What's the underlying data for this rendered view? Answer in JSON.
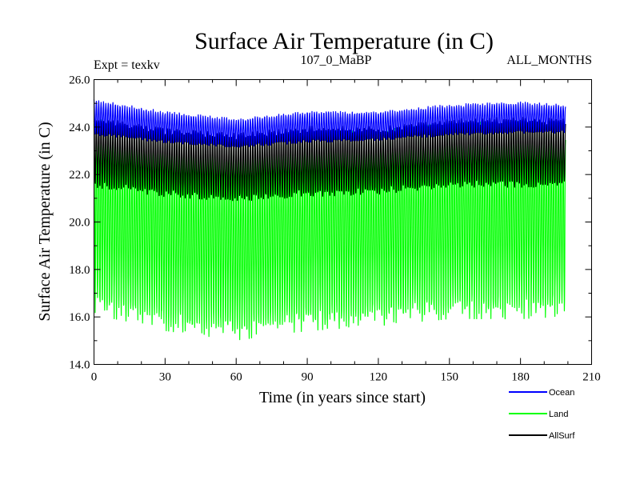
{
  "chart_data": {
    "type": "line",
    "title": "Surface Air Temperature (in C)",
    "subtitle_left": "Expt = texkv",
    "subtitle_center": "107_0_MaBP",
    "subtitle_right": "ALL_MONTHS",
    "xlabel": "Time (in years since start)",
    "ylabel": "Surface Air Temperature (in C)",
    "xlim": [
      0,
      210
    ],
    "ylim": [
      14.0,
      26.0
    ],
    "x_ticks": [
      0,
      30,
      60,
      90,
      120,
      150,
      180,
      210
    ],
    "x_tick_labels": [
      "0",
      "30",
      "60",
      "90",
      "120",
      "150",
      "180",
      "210"
    ],
    "y_ticks": [
      14.0,
      16.0,
      18.0,
      20.0,
      22.0,
      24.0,
      26.0
    ],
    "y_tick_labels": [
      "14.0",
      "16.0",
      "18.0",
      "20.0",
      "22.0",
      "24.0",
      "26.0"
    ],
    "x_data_range": [
      0,
      199
    ],
    "samples_per_year": 12,
    "series": [
      {
        "name": "Ocean",
        "color": "#0000ff",
        "seasonal_range": [
          {
            "year": 0,
            "min": 23.7,
            "max": 25.1
          },
          {
            "year": 30,
            "min": 23.4,
            "max": 24.6
          },
          {
            "year": 60,
            "min": 23.2,
            "max": 24.3
          },
          {
            "year": 90,
            "min": 23.4,
            "max": 24.6
          },
          {
            "year": 120,
            "min": 23.5,
            "max": 24.6
          },
          {
            "year": 150,
            "min": 23.7,
            "max": 24.9
          },
          {
            "year": 180,
            "min": 23.8,
            "max": 25.0
          },
          {
            "year": 199,
            "min": 23.8,
            "max": 24.9
          }
        ]
      },
      {
        "name": "Land",
        "color": "#00ff00",
        "seasonal_range": [
          {
            "year": 0,
            "min": 16.5,
            "max": 24.0
          },
          {
            "year": 30,
            "min": 15.8,
            "max": 23.3
          },
          {
            "year": 60,
            "min": 15.4,
            "max": 23.0
          },
          {
            "year": 90,
            "min": 15.8,
            "max": 23.4
          },
          {
            "year": 120,
            "min": 16.0,
            "max": 23.5
          },
          {
            "year": 150,
            "min": 16.3,
            "max": 23.8
          },
          {
            "year": 180,
            "min": 16.3,
            "max": 23.9
          },
          {
            "year": 199,
            "min": 16.4,
            "max": 23.8
          }
        ]
      },
      {
        "name": "AllSurf",
        "color": "#000000",
        "seasonal_range": [
          {
            "year": 0,
            "min": 21.6,
            "max": 24.3
          },
          {
            "year": 30,
            "min": 21.2,
            "max": 23.8
          },
          {
            "year": 60,
            "min": 21.0,
            "max": 23.6
          },
          {
            "year": 90,
            "min": 21.2,
            "max": 23.9
          },
          {
            "year": 120,
            "min": 21.3,
            "max": 23.9
          },
          {
            "year": 150,
            "min": 21.6,
            "max": 24.2
          },
          {
            "year": 180,
            "min": 21.6,
            "max": 24.3
          },
          {
            "year": 199,
            "min": 21.6,
            "max": 24.2
          }
        ]
      }
    ],
    "legend": [
      "Ocean",
      "Land",
      "AllSurf"
    ],
    "legend_position": "bottom-right"
  }
}
